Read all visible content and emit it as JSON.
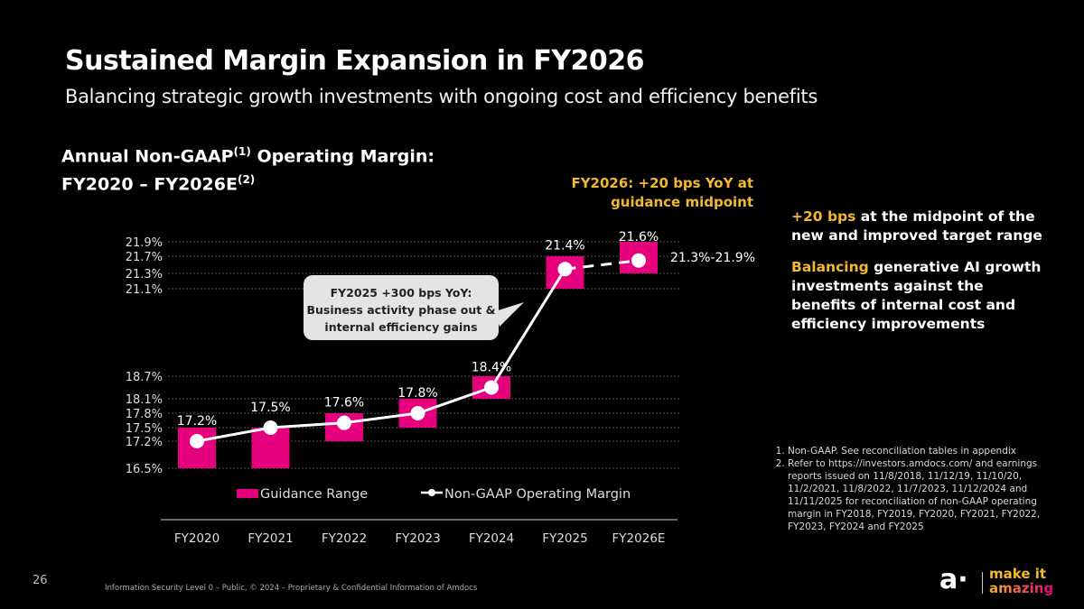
{
  "header": {
    "title": "Sustained Margin Expansion in FY2026",
    "subtitle": "Balancing strategic growth investments with ongoing cost and efficiency benefits"
  },
  "chart_header": {
    "line1_a": "Annual Non-GAAP",
    "line1_sup": "(1)",
    "line1_b": " Operating Margin:",
    "line2_a": "FY2020 – FY2026E",
    "line2_sup": "(2)"
  },
  "callouts": {
    "fy2026": "FY2026: +20 bps YoY at guidance midpoint",
    "bubble_line1": "FY2025 +300 bps YoY:",
    "bubble_line2": "Business activity phase out &",
    "bubble_line3": "internal efficiency gains",
    "range_label": "21.3%-21.9%"
  },
  "side_panel": {
    "p1_highlight": "+20 bps",
    "p1_rest": " at the midpoint of the new and improved target range",
    "p2_highlight": "Balancing",
    "p2_rest": " generative AI growth investments against the benefits of internal cost and efficiency improvements"
  },
  "footnotes": [
    "Non-GAAP. See reconciliation tables in appendix",
    "Refer to https://investors.amdocs.com/ and earnings reports issued on 11/8/2018, 11/12/19, 11/10/20, 11/2/2021, 11/8/2022, 11/7/2023, 11/12/2024  and 11/11/2025 for reconciliation of non-GAAP operating margin in FY2018, FY2019, FY2020, FY2021, FY2022, FY2023, FY2024 and FY2025"
  ],
  "footer": {
    "page_number": "26",
    "copyright": "Information Security Level 0 – Public, © 2024 – Proprietary & Confidential Information of Amdocs",
    "logo_mark": "a·",
    "logo_line1": "make it",
    "logo_line2": "amazing"
  },
  "colors": {
    "accent_pink": "#e6007e",
    "accent_gold": "#f2b82f",
    "line_white": "#ffffff"
  },
  "chart_data": {
    "type": "bar",
    "title": "Annual Non-GAAP Operating Margin: FY2020 – FY2026E",
    "categories": [
      "FY2020",
      "FY2021",
      "FY2022",
      "FY2023",
      "FY2024",
      "FY2025",
      "FY2026E"
    ],
    "y_tick_labels": [
      "21.9%",
      "21.7%",
      "21.3%",
      "21.1%",
      "18.7%",
      "18.1%",
      "17.8%",
      "17.5%",
      "17.2%",
      "16.5%"
    ],
    "y_ticks": [
      21.9,
      21.7,
      21.3,
      21.1,
      18.7,
      18.1,
      17.8,
      17.5,
      17.2,
      16.5
    ],
    "axis_note": "y-axis is non-linear; gridlines at listed tick values",
    "grid": true,
    "legend_position": "bottom",
    "series": [
      {
        "name": "Guidance Range",
        "type": "floating-bar",
        "color": "#e6007e",
        "low": [
          16.5,
          16.5,
          17.2,
          17.5,
          18.1,
          21.1,
          21.3
        ],
        "high": [
          17.5,
          17.5,
          17.8,
          18.1,
          18.7,
          21.7,
          21.9
        ]
      },
      {
        "name": "Non-GAAP Operating Margin",
        "type": "line",
        "color": "#ffffff",
        "values": [
          17.2,
          17.5,
          17.6,
          17.8,
          18.4,
          21.4,
          21.6
        ],
        "labels": [
          "17.2%",
          "17.5%",
          "17.6%",
          "17.8%",
          "18.4%",
          "21.4%",
          "21.6%"
        ],
        "dashed_from_index": 5
      }
    ]
  }
}
